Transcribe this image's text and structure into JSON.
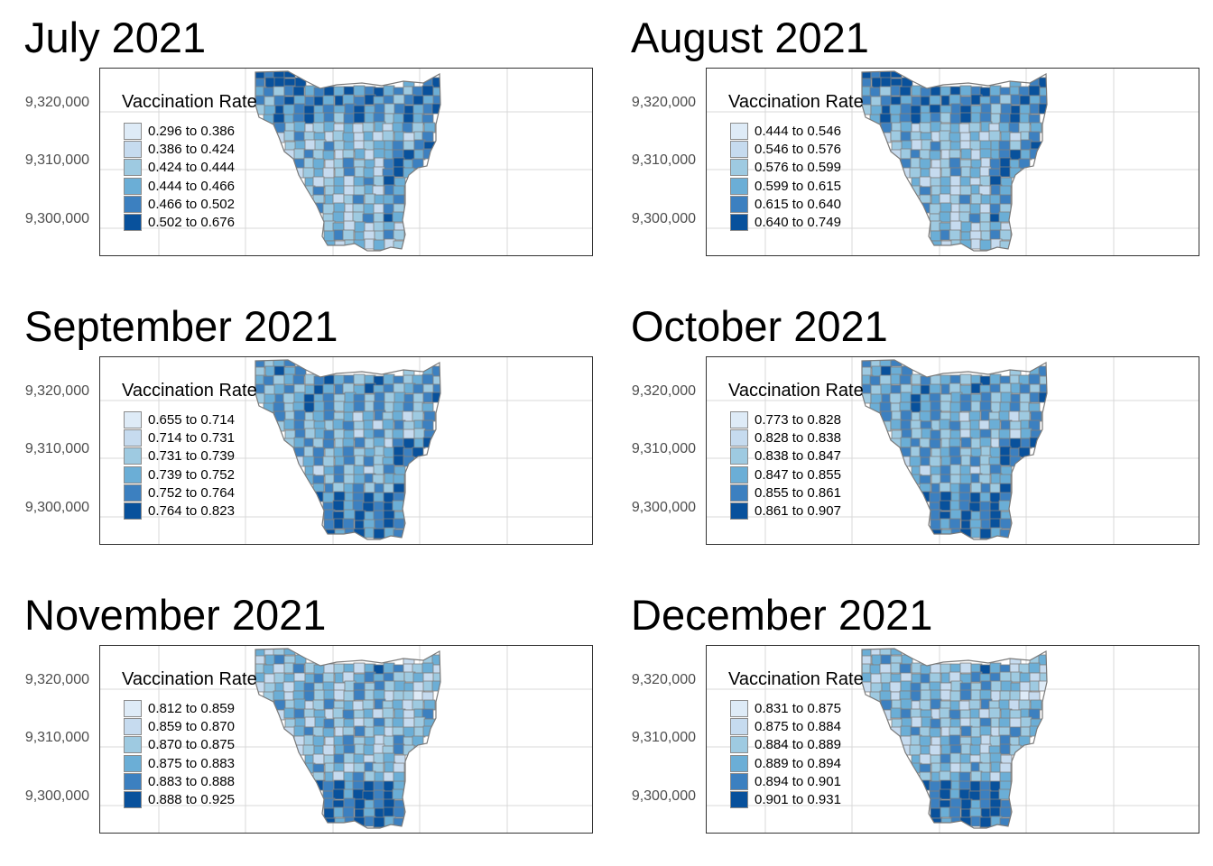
{
  "colors": {
    "palette": [
      "#deebf7",
      "#c6dbef",
      "#9ecae1",
      "#6baed6",
      "#3c80c0",
      "#08519c"
    ],
    "district_border": "#808080",
    "grid": "#d9d9d9"
  },
  "legend_title": "Vaccination Rate",
  "y_ticks": [
    "9,320,000",
    "9,310,000",
    "9,300,000"
  ],
  "panels": [
    {
      "title": "July 2021",
      "legend": [
        "0.296 to 0.386",
        "0.386 to 0.424",
        "0.424 to 0.444",
        "0.444 to 0.466",
        "0.466 to 0.502",
        "0.502 to 0.676"
      ]
    },
    {
      "title": "August 2021",
      "legend": [
        "0.444 to 0.546",
        "0.546 to 0.576",
        "0.576 to 0.599",
        "0.599 to 0.615",
        "0.615 to 0.640",
        "0.640 to 0.749"
      ]
    },
    {
      "title": "September 2021",
      "legend": [
        "0.655 to 0.714",
        "0.714 to 0.731",
        "0.731 to 0.739",
        "0.739 to 0.752",
        "0.752 to 0.764",
        "0.764 to 0.823"
      ]
    },
    {
      "title": "October 2021",
      "legend": [
        "0.773 to 0.828",
        "0.828 to 0.838",
        "0.838 to 0.847",
        "0.847 to 0.855",
        "0.855 to 0.861",
        "0.861 to 0.907"
      ]
    },
    {
      "title": "November 2021",
      "legend": [
        "0.812 to 0.859",
        "0.859 to 0.870",
        "0.870 to 0.875",
        "0.875 to 0.883",
        "0.883 to 0.888",
        "0.888 to 0.925"
      ]
    },
    {
      "title": "December 2021",
      "legend": [
        "0.831 to 0.875",
        "0.875 to 0.884",
        "0.884 to 0.889",
        "0.889 to 0.894",
        "0.894 to 0.901",
        "0.901 to 0.931"
      ]
    }
  ]
}
